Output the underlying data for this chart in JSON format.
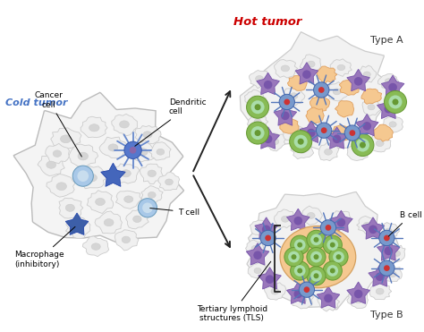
{
  "bg_color": "#ffffff",
  "cold_tumor_label": "Cold tumor",
  "hot_tumor_label": "Hot tumor",
  "type_a_label": "Type A",
  "type_b_label": "Type B",
  "labels": {
    "cancer_cell": "Cancer\ncell",
    "dendritic_cell": "Dendritic\ncell",
    "macrophage": "Macrophage\n(inhibitory)",
    "t_cell": "T cell",
    "b_cell": "B cell",
    "tls": "Tertiary lymphoid\nstructures (TLS)"
  },
  "colors": {
    "cold_tumor_text": "#4472C4",
    "hot_tumor_text": "#CC0000",
    "arrow": "#222222",
    "cancer_bg_fill": "#F0F0F0",
    "cancer_bg_border": "#BBBBBB",
    "cancer_cell_fill": "#E8E8E8",
    "cancer_cell_border": "#AAAAAA",
    "cancer_inner": "#C8C8C8",
    "t_cell_fill": "#A8C8E8",
    "t_cell_border": "#6699BB",
    "t_cell_inner": "#C8DDEE",
    "macrophage_fill": "#4466BB",
    "macrophage_border": "#2244AA",
    "dendritic_fill": "#5577CC",
    "dendritic_border": "#3355AA",
    "dendritic_spike": "#6688CC",
    "blue_star_fill": "#5588BB",
    "blue_star_border": "#3366AA",
    "purple_fill": "#9977BB",
    "purple_border": "#7755AA",
    "purple_inner": "#7755AA",
    "orange_fill": "#F5C890",
    "orange_border": "#E0A060",
    "orange_inner": "#FFDDAA",
    "green_fill": "#88BB55",
    "green_border": "#669933",
    "green_inner": "#AADDAA",
    "red_dot": "#CC3333",
    "tls_orange": "#F5C890",
    "tls_orange_border": "#D4A060",
    "bracket_color": "#222222"
  }
}
